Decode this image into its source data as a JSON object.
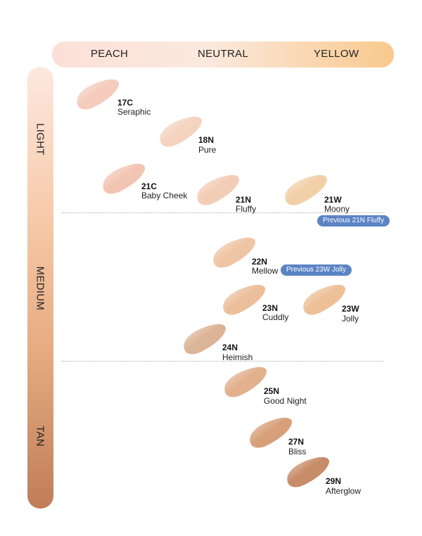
{
  "columns": [
    "PEACH",
    "NEUTRAL",
    "YELLOW"
  ],
  "rows": [
    "LIGHT",
    "MEDIUM",
    "TAN"
  ],
  "shades": [
    {
      "code": "17C",
      "name": "Seraphic",
      "color": "#f4cbbd"
    },
    {
      "code": "18N",
      "name": "Pure",
      "color": "#f4d3bf"
    },
    {
      "code": "21C",
      "name": "Baby Cheek",
      "color": "#f2c5b3"
    },
    {
      "code": "21N",
      "name": "Fluffy",
      "color": "#f2cdb5"
    },
    {
      "code": "21W",
      "name": "Moony",
      "color": "#f1d0a8"
    },
    {
      "code": "22N",
      "name": "Mellow",
      "color": "#efc6a5"
    },
    {
      "code": "23N",
      "name": "Cuddly",
      "color": "#ecbf9c"
    },
    {
      "code": "23W",
      "name": "Jolly",
      "color": "#edc098"
    },
    {
      "code": "24N",
      "name": "Heimish",
      "color": "#dcb497"
    },
    {
      "code": "25N",
      "name": "Good Night",
      "color": "#e2b08d"
    },
    {
      "code": "27N",
      "name": "Bliss",
      "color": "#d7a07a"
    },
    {
      "code": "29N",
      "name": "Afterglow",
      "color": "#c78c68"
    }
  ],
  "notes": [
    "Previous 21N Fluffy",
    "Previous 23W Jolly"
  ],
  "colors": {
    "note_pill": "#5b84c4"
  }
}
